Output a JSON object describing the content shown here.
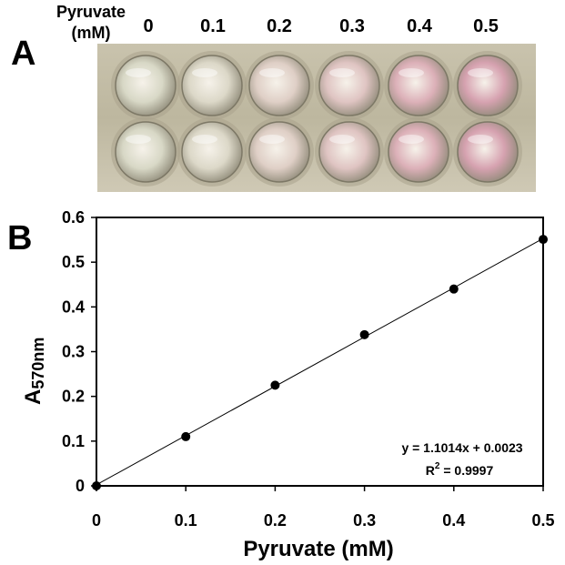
{
  "panels": {
    "a": "A",
    "b": "B"
  },
  "plate": {
    "header_line1": "Pyruvate",
    "header_line2": "(mM)",
    "concentrations": [
      "0",
      "0.1",
      "0.2",
      "0.3",
      "0.4",
      "0.5"
    ],
    "well_colors": [
      "#d8d8c6",
      "#dcd8c8",
      "#dfcfc6",
      "#dfc4c2",
      "#dcb0b8",
      "#d6a2b0"
    ]
  },
  "chart_data": {
    "type": "scatter",
    "xlabel": "Pyruvate (mM)",
    "ylabel_main": "A",
    "ylabel_sub": "570nm",
    "xlim": [
      0,
      0.5
    ],
    "ylim": [
      0,
      0.6
    ],
    "x_ticks": [
      "0",
      "0.1",
      "0.2",
      "0.3",
      "0.4",
      "0.5"
    ],
    "y_ticks": [
      "0",
      "0.1",
      "0.2",
      "0.3",
      "0.4",
      "0.5",
      "0.6"
    ],
    "x": [
      0,
      0.1,
      0.2,
      0.3,
      0.4,
      0.5
    ],
    "y": [
      0.0,
      0.11,
      0.225,
      0.338,
      0.44,
      0.551
    ],
    "trendline": {
      "slope": 1.1014,
      "intercept": 0.0023
    },
    "equation": "y = 1.1014x + 0.0023",
    "r2_label": "R",
    "r2_sup": "2",
    "r2_value": " = 0.9997",
    "grid": false
  }
}
